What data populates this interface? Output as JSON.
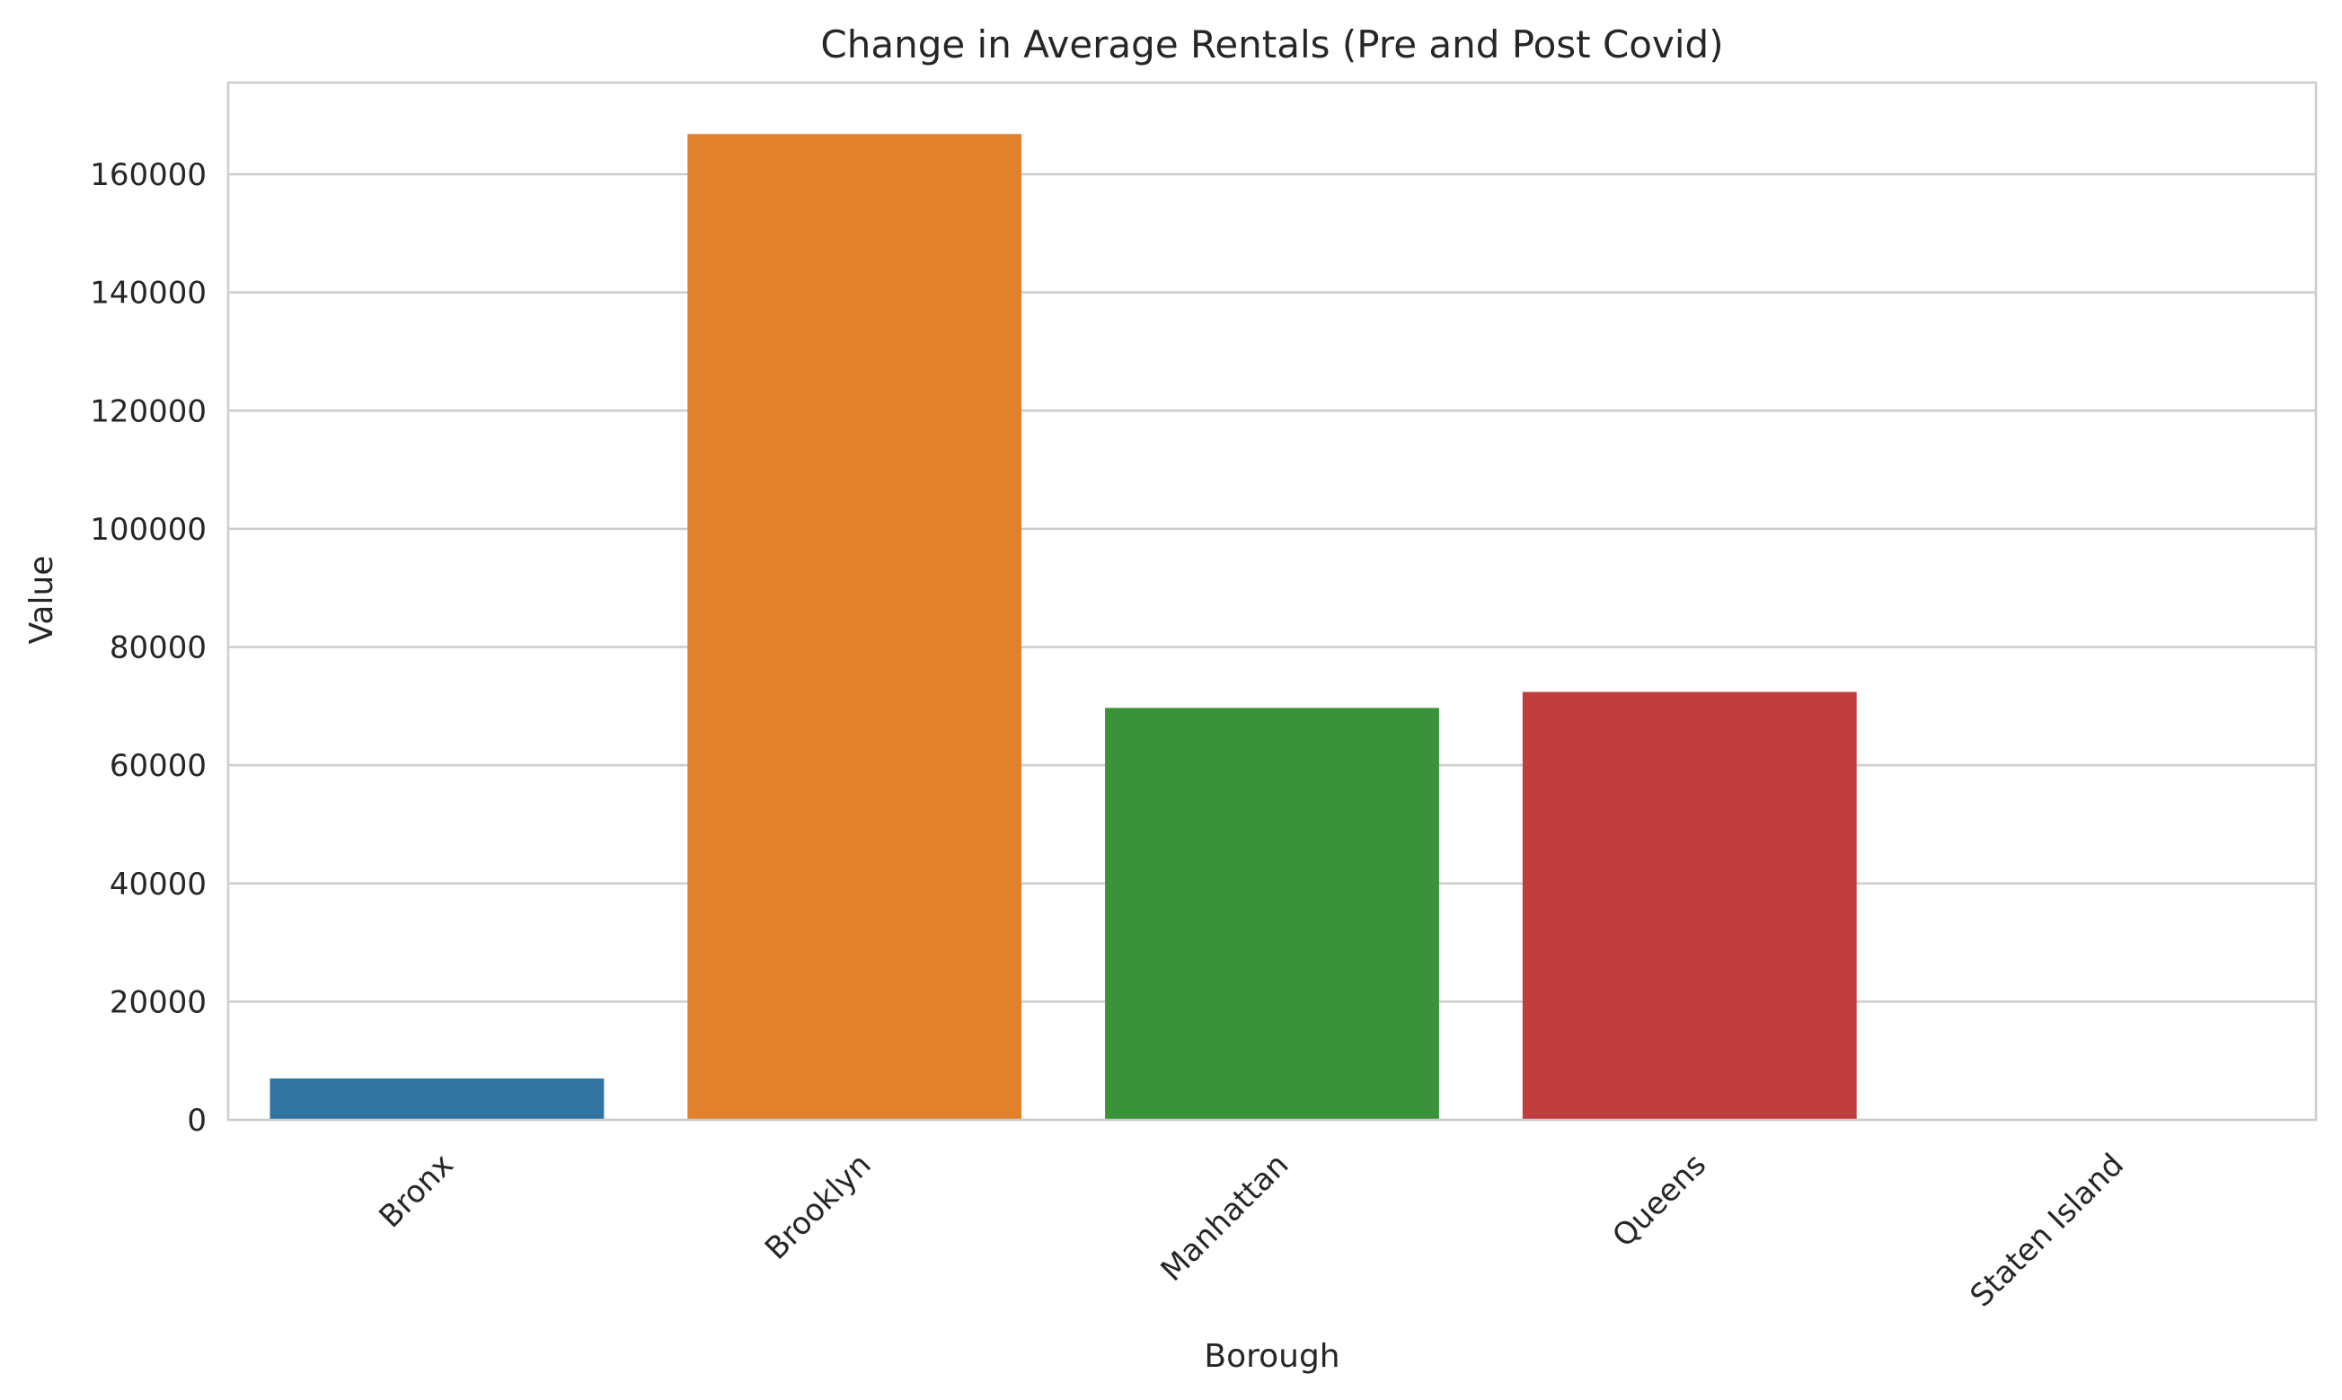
{
  "chart_data": {
    "type": "bar",
    "title": "Change in Average Rentals (Pre and Post Covid)",
    "xlabel": "Borough",
    "ylabel": "Value",
    "categories": [
      "Bronx",
      "Brooklyn",
      "Manhattan",
      "Queens",
      "Staten Island"
    ],
    "values": [
      7000,
      166800,
      69700,
      72400,
      0
    ],
    "colors": [
      "#3274a1",
      "#e1812c",
      "#3a923a",
      "#c03d3e",
      "#9372b2"
    ],
    "ylim": [
      0,
      175500
    ],
    "yticks": [
      0,
      20000,
      40000,
      60000,
      80000,
      100000,
      120000,
      140000,
      160000
    ],
    "ytick_labels": [
      "0",
      "20000",
      "40000",
      "60000",
      "80000",
      "100000",
      "120000",
      "140000",
      "160000"
    ],
    "grid": "y",
    "legend": "none"
  }
}
